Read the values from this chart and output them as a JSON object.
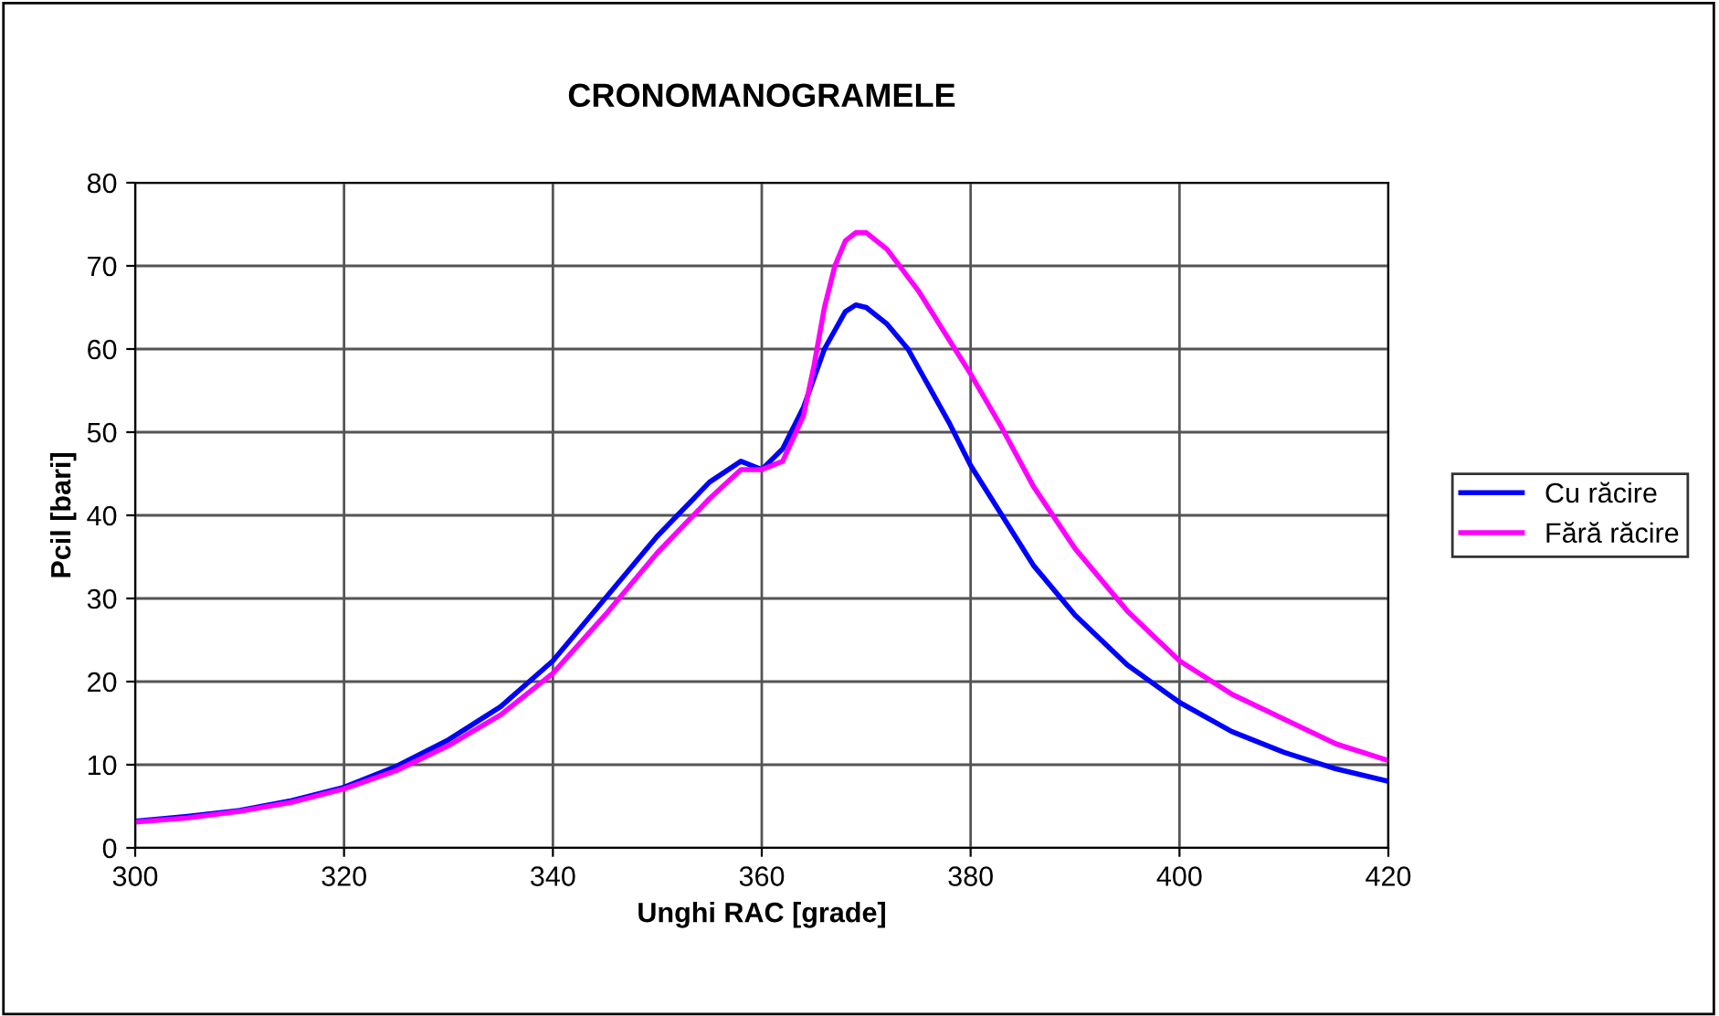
{
  "chart_data": {
    "type": "line",
    "title": "CRONOMANOGRAMELE",
    "xlabel": "Unghi RAC [grade]",
    "ylabel": "Pcil [bari]",
    "xlim": [
      300,
      420
    ],
    "xticks": [
      300,
      320,
      340,
      360,
      380,
      400,
      420
    ],
    "ylim": [
      0,
      80
    ],
    "yticks": [
      0,
      10,
      20,
      30,
      40,
      50,
      60,
      70,
      80
    ],
    "grid": true,
    "legend": "right",
    "marker": "none",
    "line_style": "solid",
    "series": [
      {
        "name": "Cu răcire",
        "color": "#0000ff",
        "x": [
          300,
          305,
          310,
          315,
          320,
          325,
          330,
          335,
          340,
          345,
          350,
          355,
          358,
          360,
          362,
          364,
          366,
          368,
          369,
          370,
          372,
          374,
          376,
          378,
          380,
          383,
          386,
          390,
          395,
          400,
          405,
          410,
          415,
          420
        ],
        "values": [
          3.2,
          3.8,
          4.5,
          5.7,
          7.3,
          9.8,
          13,
          17,
          22.5,
          30,
          37.5,
          44,
          46.5,
          45.5,
          48,
          53,
          60,
          64.5,
          65.3,
          65,
          63,
          60,
          55.5,
          51,
          46,
          40,
          34,
          28,
          22,
          17.5,
          14,
          11.5,
          9.5,
          8
        ]
      },
      {
        "name": "Fără răcire",
        "color": "#ff00ff",
        "x": [
          300,
          305,
          310,
          315,
          320,
          325,
          330,
          335,
          340,
          345,
          350,
          355,
          358,
          360,
          362,
          364,
          365,
          366,
          367,
          368,
          369,
          370,
          372,
          375,
          378,
          380,
          383,
          386,
          390,
          395,
          400,
          405,
          410,
          415,
          420
        ],
        "values": [
          3.1,
          3.6,
          4.4,
          5.5,
          7.1,
          9.3,
          12.3,
          16,
          21,
          28,
          35.5,
          42,
          45.5,
          45.5,
          46.5,
          52,
          58,
          65,
          70,
          73,
          74,
          74,
          72,
          67,
          61,
          57,
          50.5,
          43.5,
          36,
          28.5,
          22.5,
          18.5,
          15.5,
          12.5,
          10.5
        ]
      }
    ]
  }
}
